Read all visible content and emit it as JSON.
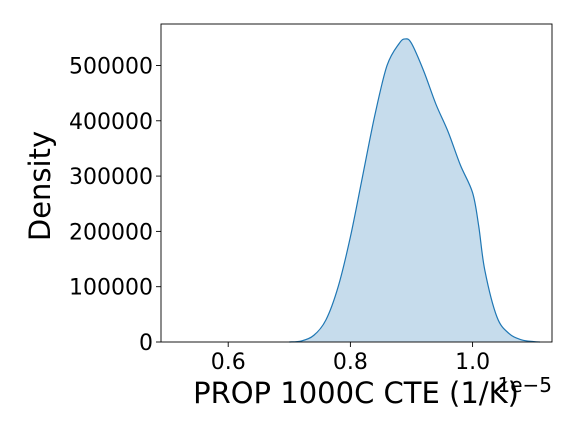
{
  "chart_data": {
    "type": "area",
    "xlabel": "PROP 1000C CTE (1/K)",
    "ylabel": "Density",
    "x_offset_label": "1e−5",
    "x_scale_factor": 1e-05,
    "xlim": [
      0.49,
      1.13
    ],
    "ylim": [
      0,
      575000
    ],
    "xticks": [
      0.6,
      0.8,
      1.0
    ],
    "xtick_labels": [
      "0.6",
      "0.8",
      "1.0"
    ],
    "yticks": [
      0,
      100000,
      200000,
      300000,
      400000,
      500000
    ],
    "ytick_labels": [
      "0",
      "100000",
      "200000",
      "300000",
      "400000",
      "500000"
    ],
    "grid": false,
    "colors": {
      "line": "#1f77b4",
      "fill": "#c6dcec",
      "axes": "#000000"
    },
    "series": [
      {
        "x": [
          0.7,
          0.72,
          0.74,
          0.76,
          0.78,
          0.8,
          0.82,
          0.84,
          0.86,
          0.88,
          0.89,
          0.9,
          0.92,
          0.94,
          0.96,
          0.98,
          1.0,
          1.01,
          1.02,
          1.04,
          1.06,
          1.08,
          1.1,
          1.11
        ],
        "y": [
          0,
          2000,
          12000,
          40000,
          100000,
          190000,
          300000,
          410000,
          500000,
          540000,
          548000,
          540000,
          490000,
          430000,
          380000,
          320000,
          270000,
          210000,
          130000,
          45000,
          15000,
          4000,
          800,
          0
        ]
      }
    ]
  }
}
